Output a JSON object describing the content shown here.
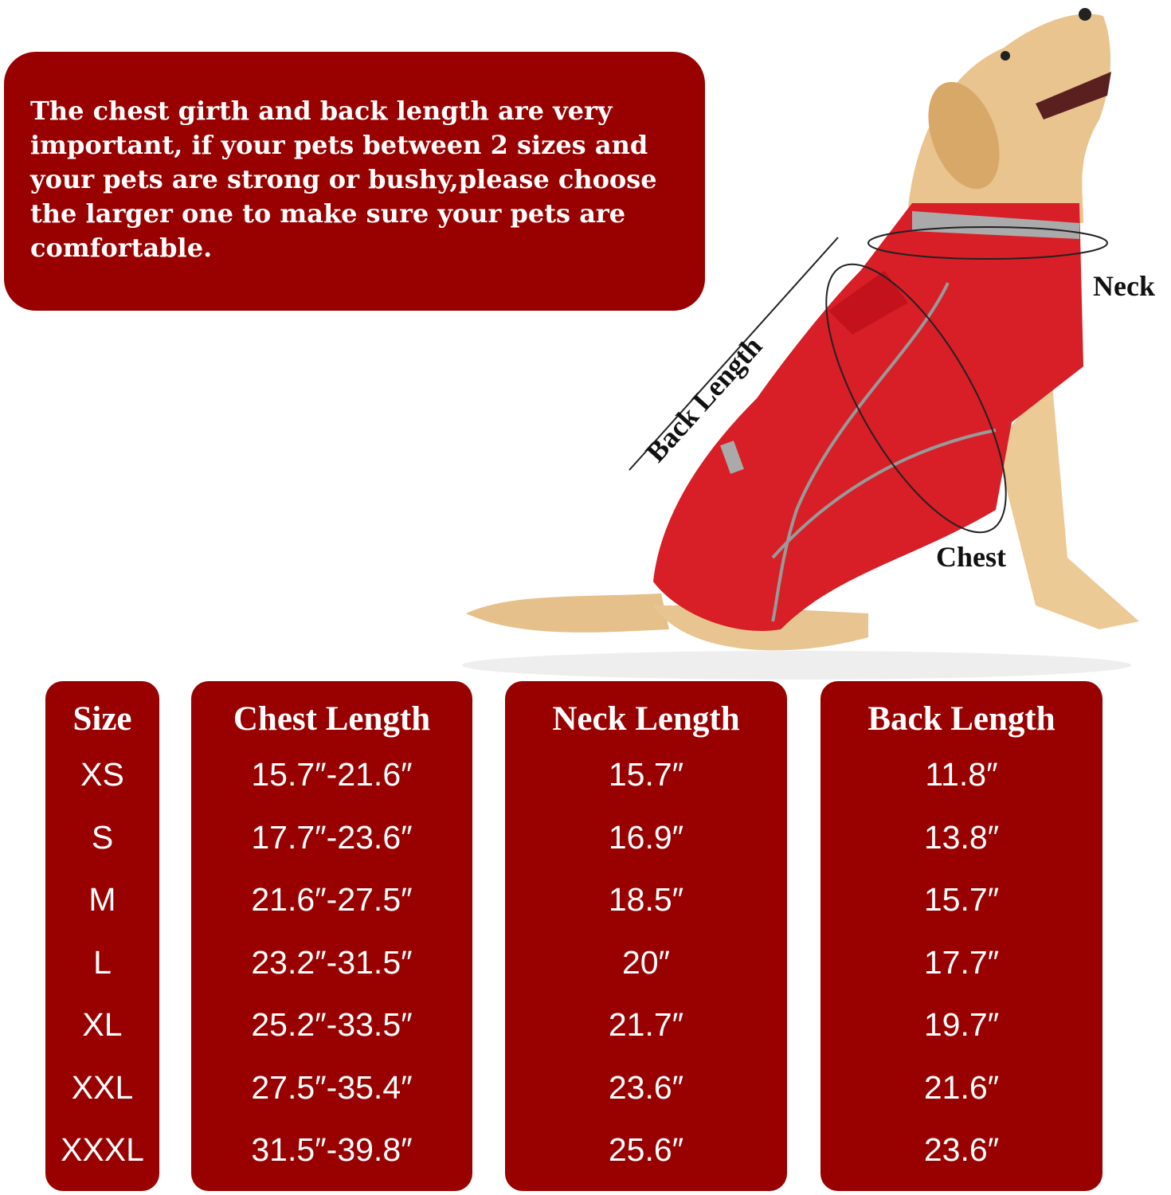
{
  "note": "The chest girth and back length are very\nimportant, if your pets between 2 sizes and\n your pets are strong or bushy,please choose\n the larger one to make sure your pets are\ncomfortable.",
  "labels": {
    "neck": "Neck",
    "back": "Back Length",
    "chest": "Chest"
  },
  "colors": {
    "panel": "#990000",
    "coat": "#d81e26",
    "text": "#ffffff"
  },
  "table": {
    "headers": [
      "Size",
      "Chest Length",
      "Neck Length",
      "Back Length"
    ],
    "sizes": [
      "XS",
      "S",
      "M",
      "L",
      "XL",
      "XXL",
      "XXXL"
    ],
    "chest": [
      "15.7″-21.6″",
      "17.7″-23.6″",
      "21.6″-27.5″",
      "23.2″-31.5″",
      "25.2″-33.5″",
      "27.5″-35.4″",
      "31.5″-39.8″"
    ],
    "neck": [
      "15.7″",
      "16.9″",
      "18.5″",
      "20″",
      "21.7″",
      "23.6″",
      "25.6″"
    ],
    "back": [
      "11.8″",
      "13.8″",
      "15.7″",
      "17.7″",
      "19.7″",
      "21.6″",
      "23.6″"
    ]
  }
}
